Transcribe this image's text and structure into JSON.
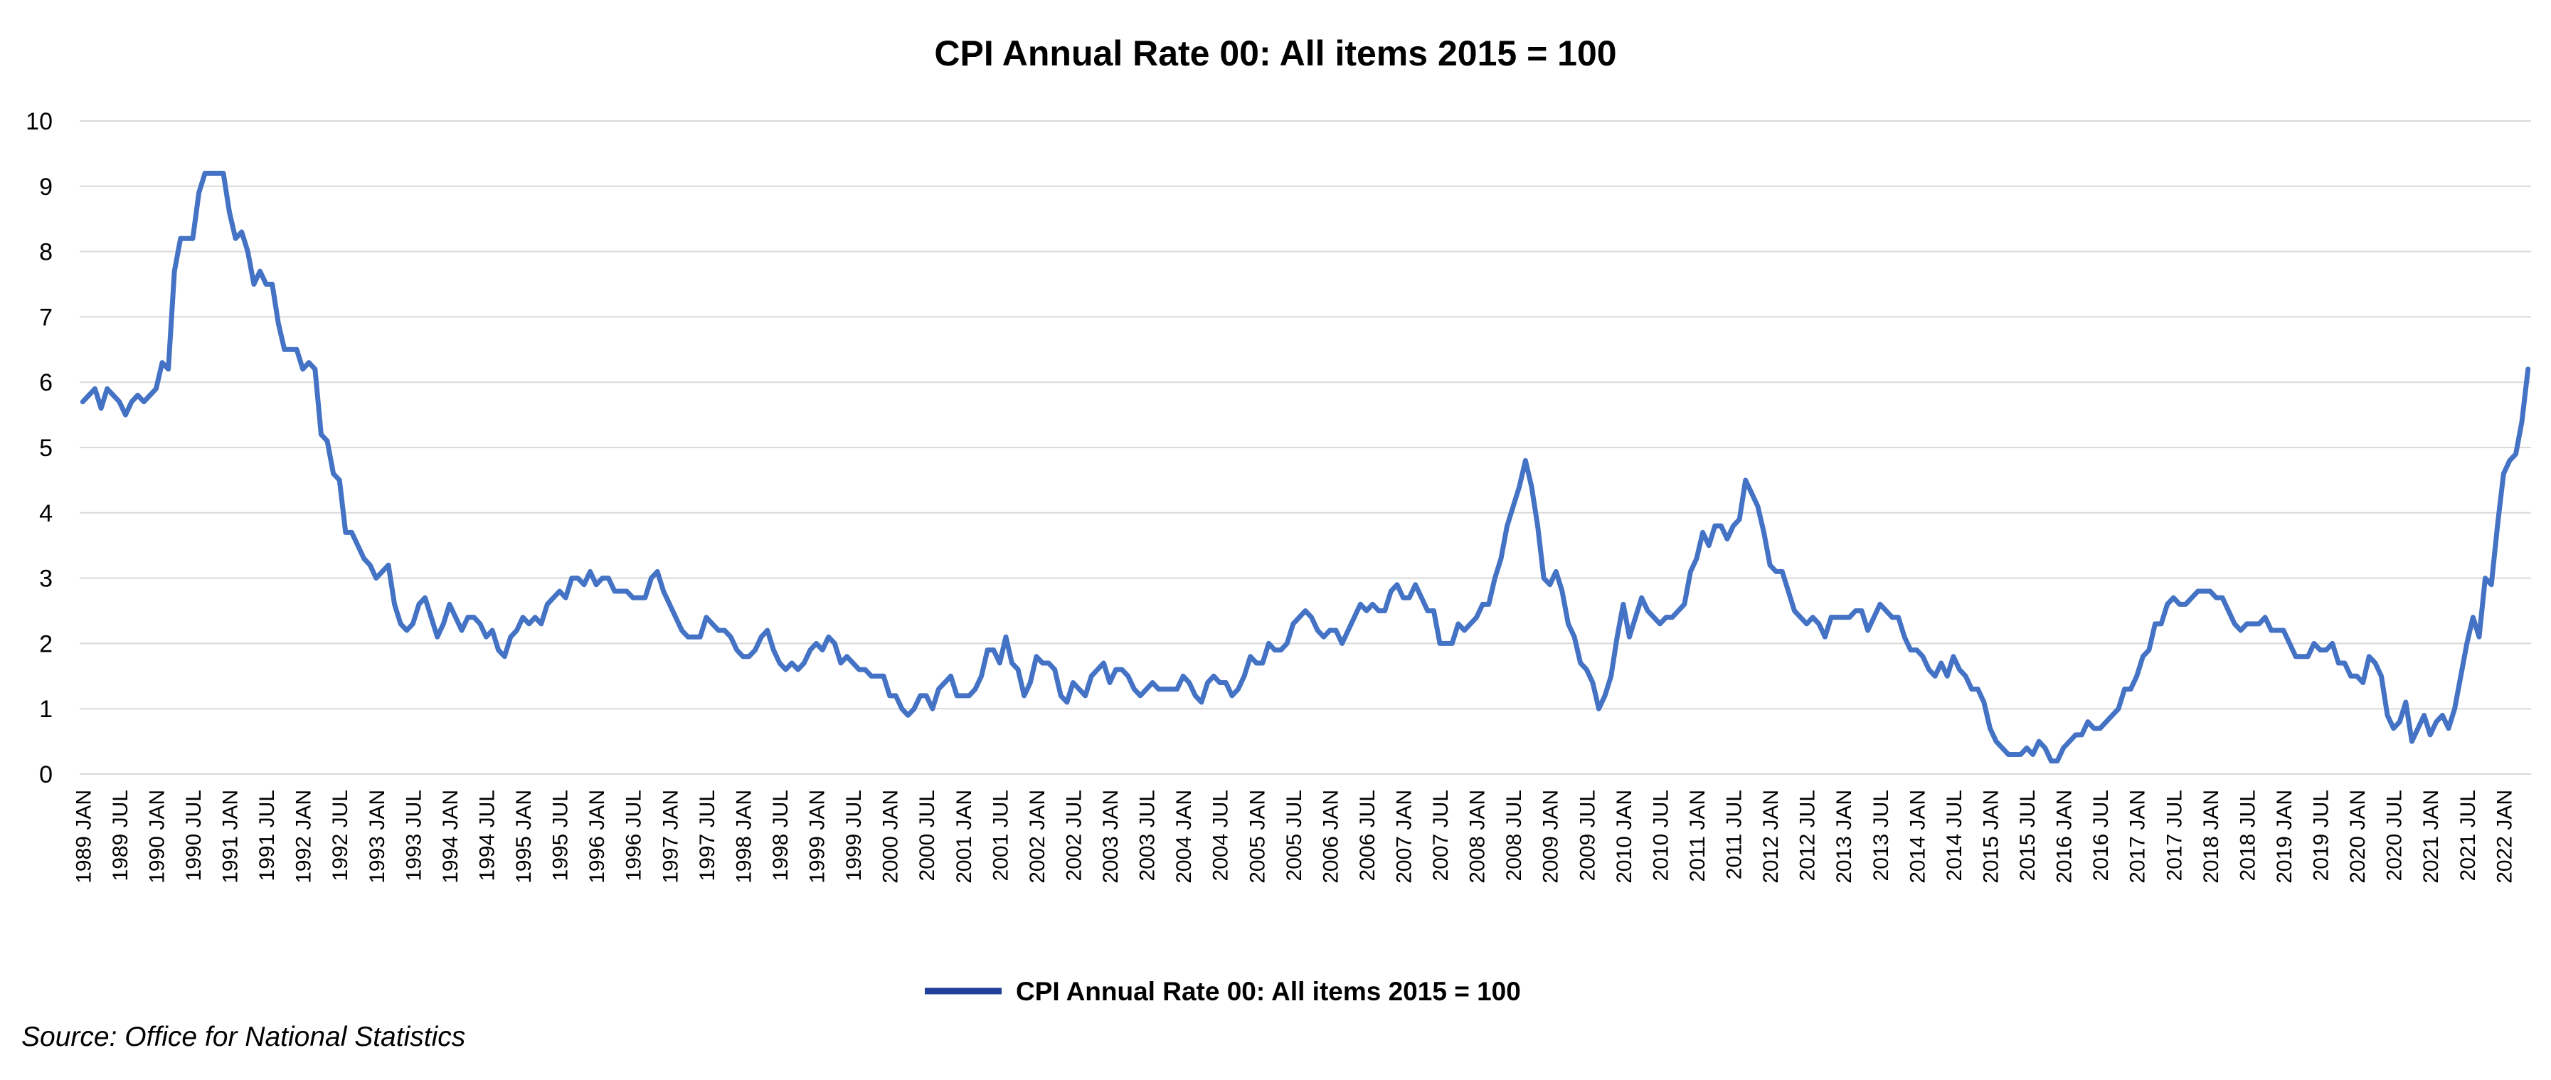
{
  "chart_data": {
    "type": "line",
    "title": "CPI Annual Rate 00:  All items 2015 = 100",
    "source": "Source: Office for National Statistics",
    "xlabel": "",
    "ylabel": "",
    "ylim": [
      0,
      10
    ],
    "y_ticks": [
      "0",
      "1",
      "2",
      "3",
      "4",
      "5",
      "6",
      "7",
      "8",
      "9",
      "10"
    ],
    "x_tick_labels": [
      "1989 JAN",
      "1989 JUL",
      "1990 JAN",
      "1990 JUL",
      "1991 JAN",
      "1991 JUL",
      "1992 JAN",
      "1992 JUL",
      "1993 JAN",
      "1993 JUL",
      "1994 JAN",
      "1994 JUL",
      "1995 JAN",
      "1995 JUL",
      "1996 JAN",
      "1996 JUL",
      "1997 JAN",
      "1997 JUL",
      "1998 JAN",
      "1998 JUL",
      "1999 JAN",
      "1999 JUL",
      "2000 JAN",
      "2000 JUL",
      "2001 JAN",
      "2001 JUL",
      "2002 JAN",
      "2002 JUL",
      "2003 JAN",
      "2003 JUL",
      "2004 JAN",
      "2004 JUL",
      "2005 JAN",
      "2005 JUL",
      "2006 JAN",
      "2006 JUL",
      "2007 JAN",
      "2007 JUL",
      "2008 JAN",
      "2008 JUL",
      "2009 JAN",
      "2009 JUL",
      "2010 JAN",
      "2010 JUL",
      "2011 JAN",
      "2011 JUL",
      "2012 JAN",
      "2012 JUL",
      "2013 JAN",
      "2013 JUL",
      "2014 JAN",
      "2014 JUL",
      "2015 JAN",
      "2015 JUL",
      "2016 JAN",
      "2016 JUL",
      "2017 JAN",
      "2017 JUL",
      "2018 JAN",
      "2018 JUL",
      "2019 JAN",
      "2019 JUL",
      "2020 JAN",
      "2020 JUL",
      "2021 JAN",
      "2021 JUL",
      "2022 JAN"
    ],
    "x_start": "1989 JAN",
    "x_end": "2022 MAR",
    "grid": true,
    "legend_position": "bottom",
    "series": [
      {
        "name": "CPI Annual Rate 00:  All items 2015 = 100",
        "color": "#4472C4",
        "values": [
          5.7,
          5.8,
          5.9,
          5.6,
          5.9,
          5.8,
          5.7,
          5.5,
          5.7,
          5.8,
          5.7,
          5.8,
          5.9,
          6.3,
          6.2,
          7.7,
          8.2,
          8.2,
          8.2,
          8.9,
          9.2,
          9.2,
          9.2,
          9.2,
          8.6,
          8.2,
          8.3,
          8.0,
          7.5,
          7.7,
          7.5,
          7.5,
          6.9,
          6.5,
          6.5,
          6.5,
          6.2,
          6.3,
          6.2,
          5.2,
          5.1,
          4.6,
          4.5,
          3.7,
          3.7,
          3.5,
          3.3,
          3.2,
          3.0,
          3.1,
          3.2,
          2.6,
          2.3,
          2.2,
          2.3,
          2.6,
          2.7,
          2.4,
          2.1,
          2.3,
          2.6,
          2.4,
          2.2,
          2.4,
          2.4,
          2.3,
          2.1,
          2.2,
          1.9,
          1.8,
          2.1,
          2.2,
          2.4,
          2.3,
          2.4,
          2.3,
          2.6,
          2.7,
          2.8,
          2.7,
          3.0,
          3.0,
          2.9,
          3.1,
          2.9,
          3.0,
          3.0,
          2.8,
          2.8,
          2.8,
          2.7,
          2.7,
          2.7,
          3.0,
          3.1,
          2.8,
          2.6,
          2.4,
          2.2,
          2.1,
          2.1,
          2.1,
          2.4,
          2.3,
          2.2,
          2.2,
          2.1,
          1.9,
          1.8,
          1.8,
          1.9,
          2.1,
          2.2,
          1.9,
          1.7,
          1.6,
          1.7,
          1.6,
          1.7,
          1.9,
          2.0,
          1.9,
          2.1,
          2.0,
          1.7,
          1.8,
          1.7,
          1.6,
          1.6,
          1.5,
          1.5,
          1.5,
          1.2,
          1.2,
          1.0,
          0.9,
          1.0,
          1.2,
          1.2,
          1.0,
          1.3,
          1.4,
          1.5,
          1.2,
          1.2,
          1.2,
          1.3,
          1.5,
          1.9,
          1.9,
          1.7,
          2.1,
          1.7,
          1.6,
          1.2,
          1.4,
          1.8,
          1.7,
          1.7,
          1.6,
          1.2,
          1.1,
          1.4,
          1.3,
          1.2,
          1.5,
          1.6,
          1.7,
          1.4,
          1.6,
          1.6,
          1.5,
          1.3,
          1.2,
          1.3,
          1.4,
          1.3,
          1.3,
          1.3,
          1.3,
          1.5,
          1.4,
          1.2,
          1.1,
          1.4,
          1.5,
          1.4,
          1.4,
          1.2,
          1.3,
          1.5,
          1.8,
          1.7,
          1.7,
          2.0,
          1.9,
          1.9,
          2.0,
          2.3,
          2.4,
          2.5,
          2.4,
          2.2,
          2.1,
          2.2,
          2.2,
          2.0,
          2.2,
          2.4,
          2.6,
          2.5,
          2.6,
          2.5,
          2.5,
          2.8,
          2.9,
          2.7,
          2.7,
          2.9,
          2.7,
          2.5,
          2.5,
          2.0,
          2.0,
          2.0,
          2.3,
          2.2,
          2.3,
          2.4,
          2.6,
          2.6,
          3.0,
          3.3,
          3.8,
          4.1,
          4.4,
          4.8,
          4.4,
          3.8,
          3.0,
          2.9,
          3.1,
          2.8,
          2.3,
          2.1,
          1.7,
          1.6,
          1.4,
          1.0,
          1.2,
          1.5,
          2.1,
          2.6,
          2.1,
          2.4,
          2.7,
          2.5,
          2.4,
          2.3,
          2.4,
          2.4,
          2.5,
          2.6,
          3.1,
          3.3,
          3.7,
          3.5,
          3.8,
          3.8,
          3.6,
          3.8,
          3.9,
          4.5,
          4.3,
          4.1,
          3.7,
          3.2,
          3.1,
          3.1,
          2.8,
          2.5,
          2.4,
          2.3,
          2.4,
          2.3,
          2.1,
          2.4,
          2.4,
          2.4,
          2.4,
          2.5,
          2.5,
          2.2,
          2.4,
          2.6,
          2.5,
          2.4,
          2.4,
          2.1,
          1.9,
          1.9,
          1.8,
          1.6,
          1.5,
          1.7,
          1.5,
          1.8,
          1.6,
          1.5,
          1.3,
          1.3,
          1.1,
          0.7,
          0.5,
          0.4,
          0.3,
          0.3,
          0.3,
          0.4,
          0.3,
          0.5,
          0.4,
          0.2,
          0.2,
          0.4,
          0.5,
          0.6,
          0.6,
          0.8,
          0.7,
          0.7,
          0.8,
          0.9,
          1.0,
          1.3,
          1.3,
          1.5,
          1.8,
          1.9,
          2.3,
          2.3,
          2.6,
          2.7,
          2.6,
          2.6,
          2.7,
          2.8,
          2.8,
          2.8,
          2.7,
          2.7,
          2.5,
          2.3,
          2.2,
          2.3,
          2.3,
          2.3,
          2.4,
          2.2,
          2.2,
          2.2,
          2.0,
          1.8,
          1.8,
          1.8,
          2.0,
          1.9,
          1.9,
          2.0,
          1.7,
          1.7,
          1.5,
          1.5,
          1.4,
          1.8,
          1.7,
          1.5,
          0.9,
          0.7,
          0.8,
          1.1,
          0.5,
          0.7,
          0.9,
          0.6,
          0.8,
          0.9,
          0.7,
          1.0,
          1.5,
          2.0,
          2.4,
          2.1,
          3.0,
          2.9,
          3.8,
          4.6,
          4.8,
          4.9,
          5.4,
          6.2
        ]
      }
    ]
  }
}
